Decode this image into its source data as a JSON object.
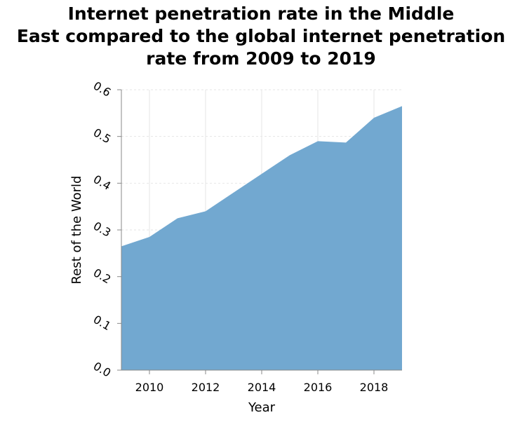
{
  "chart_data": {
    "type": "area",
    "title_lines": [
      "Internet penetration rate in the Middle",
      "East compared to the global internet penetration",
      "rate from 2009 to 2019"
    ],
    "xlabel": "Year",
    "ylabel": "Rest of the World",
    "x": [
      2009,
      2010,
      2011,
      2012,
      2013,
      2014,
      2015,
      2016,
      2017,
      2018,
      2019
    ],
    "values": [
      0.265,
      0.285,
      0.325,
      0.34,
      0.38,
      0.42,
      0.46,
      0.49,
      0.487,
      0.54,
      0.565
    ],
    "xlim": [
      2009,
      2019
    ],
    "ylim": [
      0,
      0.6
    ],
    "x_ticks": [
      "2010",
      "2012",
      "2014",
      "2016",
      "2018"
    ],
    "y_ticks": [
      "0.0",
      "0.1",
      "0.2",
      "0.3",
      "0.4",
      "0.5",
      "0.6"
    ],
    "grid": true,
    "colors": {
      "area": "#72a8d0",
      "grid": "#e6e6e6",
      "axis": "#888888"
    }
  }
}
